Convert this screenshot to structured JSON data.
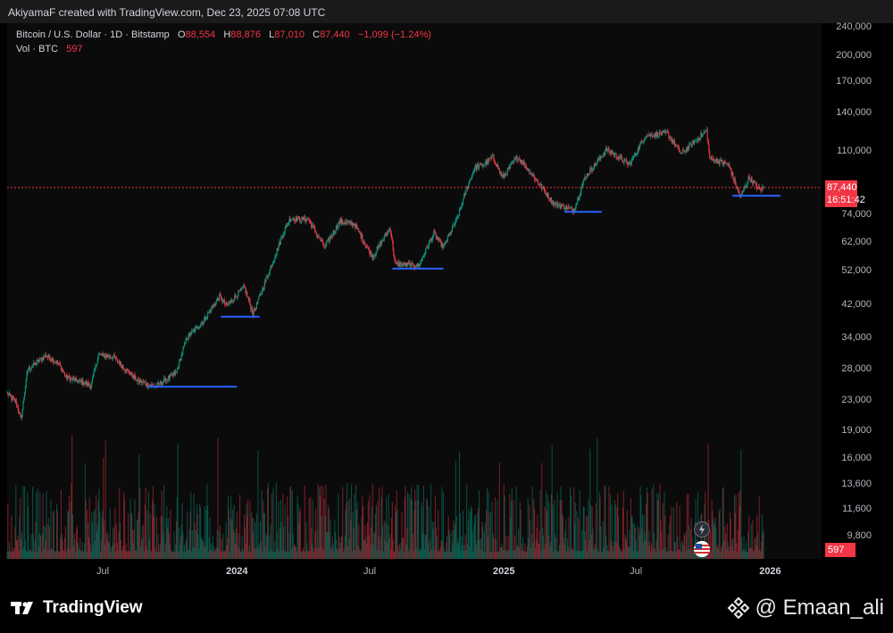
{
  "header": {
    "credit": "AkiyamaF created with TradingView.com, Dec 23, 2025 07:08 UTC"
  },
  "legend": {
    "symbol": "Bitcoin / U.S. Dollar · 1D · Bitstamp",
    "o_label": "O",
    "o": "88,554",
    "h_label": "H",
    "h": "88,876",
    "l_label": "L",
    "l": "87,010",
    "c_label": "C",
    "c": "87,440",
    "change": "−1,099 (−1.24%)",
    "vol_label": "Vol · BTC",
    "vol": "597"
  },
  "price_tag": {
    "price": "87,440",
    "countdown": "16:51:42"
  },
  "volume_tag": "597",
  "footer": {
    "brand": "TradingView",
    "watermark": "@ Emaan_ali"
  },
  "colors": {
    "up": "#089981",
    "down": "#f23645",
    "support": "#2962ff",
    "background": "#000000"
  },
  "chart_data": {
    "type": "candlestick",
    "symbol": "Bitcoin / U.S. Dollar",
    "interval": "1D",
    "exchange": "Bitstamp",
    "y_scale": "log",
    "y_ticks": [
      240000,
      200000,
      170000,
      140000,
      110000,
      74000,
      62000,
      52000,
      42000,
      34000,
      28000,
      23000,
      19000,
      16000,
      13600,
      11600,
      9800
    ],
    "y_tick_labels": [
      "240,000",
      "200,000",
      "170,000",
      "140,000",
      "110,000",
      "74,000",
      "62,000",
      "52,000",
      "42,000",
      "34,000",
      "28,000",
      "23,000",
      "19,000",
      "16,000",
      "13,600",
      "11,600",
      "9,800"
    ],
    "x_ticks": [
      {
        "label": "Jul",
        "date": "2023-07-01",
        "bold": false
      },
      {
        "label": "2024",
        "date": "2024-01-01",
        "bold": true
      },
      {
        "label": "Jul",
        "date": "2024-07-01",
        "bold": false
      },
      {
        "label": "2025",
        "date": "2025-01-01",
        "bold": true
      },
      {
        "label": "Jul",
        "date": "2025-07-01",
        "bold": false
      },
      {
        "label": "2026",
        "date": "2026-01-01",
        "bold": true
      }
    ],
    "x_range": [
      "2023-02-20",
      "2026-03-10"
    ],
    "price_path": [
      [
        "2023-02-20",
        24000
      ],
      [
        "2023-03-05",
        22500
      ],
      [
        "2023-03-11",
        20300
      ],
      [
        "2023-03-20",
        27800
      ],
      [
        "2023-04-14",
        30400
      ],
      [
        "2023-05-01",
        29000
      ],
      [
        "2023-05-12",
        26500
      ],
      [
        "2023-06-15",
        25200
      ],
      [
        "2023-06-25",
        30500
      ],
      [
        "2023-07-15",
        30200
      ],
      [
        "2023-08-17",
        26000
      ],
      [
        "2023-09-11",
        25000
      ],
      [
        "2023-10-10",
        27300
      ],
      [
        "2023-10-24",
        34000
      ],
      [
        "2023-11-15",
        37500
      ],
      [
        "2023-12-08",
        44000
      ],
      [
        "2023-12-18",
        41500
      ],
      [
        "2024-01-11",
        46800
      ],
      [
        "2024-01-23",
        39500
      ],
      [
        "2024-02-15",
        52000
      ],
      [
        "2024-03-05",
        66000
      ],
      [
        "2024-03-14",
        72000
      ],
      [
        "2024-04-08",
        71500
      ],
      [
        "2024-04-30",
        60000
      ],
      [
        "2024-05-21",
        70500
      ],
      [
        "2024-06-10",
        69500
      ],
      [
        "2024-07-05",
        56500
      ],
      [
        "2024-07-29",
        68000
      ],
      [
        "2024-08-05",
        54000
      ],
      [
        "2024-09-06",
        53500
      ],
      [
        "2024-09-27",
        65500
      ],
      [
        "2024-10-10",
        60000
      ],
      [
        "2024-10-29",
        72000
      ],
      [
        "2024-11-12",
        88000
      ],
      [
        "2024-11-22",
        99000
      ],
      [
        "2024-12-05",
        101000
      ],
      [
        "2024-12-17",
        106000
      ],
      [
        "2024-12-30",
        93000
      ],
      [
        "2025-01-20",
        106000
      ],
      [
        "2025-02-03",
        98000
      ],
      [
        "2025-02-25",
        86000
      ],
      [
        "2025-03-10",
        79000
      ],
      [
        "2025-04-07",
        76000
      ],
      [
        "2025-04-22",
        93000
      ],
      [
        "2025-05-22",
        111000
      ],
      [
        "2025-06-22",
        101000
      ],
      [
        "2025-07-14",
        121000
      ],
      [
        "2025-08-13",
        123000
      ],
      [
        "2025-09-01",
        108000
      ],
      [
        "2025-10-06",
        125000
      ],
      [
        "2025-10-10",
        105000
      ],
      [
        "2025-11-05",
        101000
      ],
      [
        "2025-11-21",
        82000
      ],
      [
        "2025-12-03",
        93000
      ],
      [
        "2025-12-18",
        86000
      ],
      [
        "2025-12-23",
        87440
      ]
    ],
    "last_price": 87440,
    "support_levels": [
      {
        "price": 25000,
        "from": "2023-09-01",
        "to": "2024-01-01"
      },
      {
        "price": 38800,
        "from": "2023-12-10",
        "to": "2024-02-01"
      },
      {
        "price": 52500,
        "from": "2024-08-01",
        "to": "2024-10-10"
      },
      {
        "price": 75000,
        "from": "2025-03-25",
        "to": "2025-05-15"
      },
      {
        "price": 83000,
        "from": "2025-11-10",
        "to": "2026-01-15"
      }
    ],
    "volume_last": 597
  }
}
